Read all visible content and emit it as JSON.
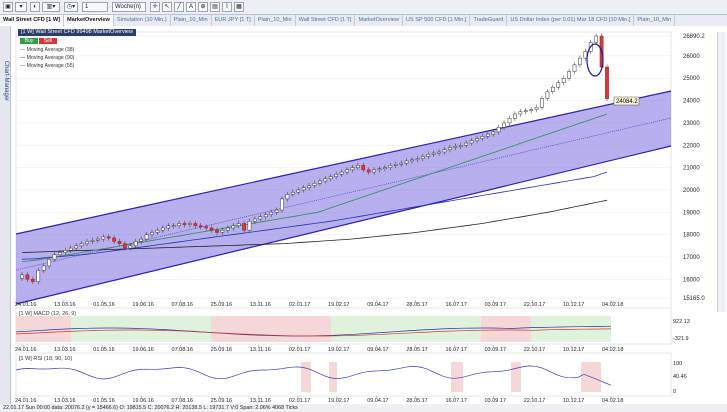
{
  "toolbar": {
    "interval_value": "1",
    "period_select": "Woche(n)"
  },
  "tabs": [
    {
      "label": "Wall Street CFD [1 W]"
    },
    {
      "label": "MarketOverview"
    },
    {
      "label": "Simulation (10 Min.)"
    },
    {
      "label": "Plain_10_Min"
    },
    {
      "label": "EUR JPY [1 T]"
    },
    {
      "label": "Plain_10_Min"
    },
    {
      "label": "Wall Street CFD [1 T]"
    },
    {
      "label": "MarketOverview"
    },
    {
      "label": "US SP 500 CFD [1 Min.]"
    },
    {
      "label": "TradeGuard"
    },
    {
      "label": "US Dollar Index (per 0.01) Mar 18 CFD [10 Min.]"
    },
    {
      "label": "Plain_10_Min"
    }
  ],
  "side_panel": {
    "label": "Chart-Manager"
  },
  "chart_header": {
    "title": "[1 W] Wall Street CFD    99498 MarketOverview",
    "buy_label": "Buy",
    "sell_label": "Sell"
  },
  "legend": [
    {
      "label": "Moving Average  (38)",
      "color": "#2e8b57"
    },
    {
      "label": "Moving Average  (90)",
      "color": "#222222"
    },
    {
      "label": "Moving Average  (55)",
      "color": "#2233aa"
    }
  ],
  "chart_data": [
    {
      "type": "candlestick",
      "x_ticks": [
        "24.01.16",
        "13.03.16",
        "01.05.16",
        "19.06.16",
        "07.08.16",
        "25.09.16",
        "13.11.16",
        "02.01.17",
        "19.02.17",
        "09.04.17",
        "28.05.17",
        "16.07.17",
        "03.09.17",
        "22.10.17",
        "10.12.17",
        "04.02.18"
      ],
      "y_ticks": [
        26890.2,
        26000,
        25000,
        24000,
        23000,
        22000,
        21000,
        20000,
        19000,
        18000,
        17000,
        16000,
        15165.0
      ],
      "ylim": [
        15165.0,
        26890.2
      ],
      "current_price_label": "24084.2",
      "weekly_close": [
        16200,
        16000,
        15900,
        16400,
        16600,
        16900,
        17100,
        17200,
        17300,
        17400,
        17500,
        17600,
        17700,
        17750,
        17800,
        17900,
        17850,
        17700,
        17600,
        17400,
        17500,
        17700,
        17800,
        18000,
        18100,
        18200,
        18300,
        18400,
        18400,
        18500,
        18450,
        18500,
        18400,
        18350,
        18300,
        18200,
        18100,
        18200,
        18300,
        18400,
        18500,
        18200,
        18600,
        18700,
        18800,
        18900,
        19000,
        19100,
        19600,
        19800,
        19900,
        20000,
        20100,
        20200,
        20300,
        20400,
        20500,
        20600,
        20700,
        20800,
        20900,
        21000,
        21100,
        20900,
        20800,
        20900,
        20950,
        21000,
        21100,
        21150,
        21200,
        21300,
        21350,
        21400,
        21500,
        21600,
        21650,
        21700,
        21800,
        21900,
        21950,
        22000,
        22100,
        22200,
        22300,
        22400,
        22500,
        22600,
        22800,
        23000,
        23200,
        23400,
        23500,
        23550,
        23600,
        23700,
        24100,
        24400,
        24600,
        24800,
        25000,
        25300,
        25600,
        25900,
        26200,
        26600,
        26890,
        25500,
        24084
      ],
      "ma38": [
        16800,
        16820,
        16850,
        16900,
        16950,
        17000,
        17050,
        17100,
        17150,
        17200,
        17250,
        17300,
        17350,
        17400,
        17450,
        17500,
        17550,
        17600,
        17650,
        17700,
        17750,
        17800,
        17850,
        17900,
        17950,
        18000,
        18050,
        18100,
        18150,
        18200,
        18250,
        18300,
        18350,
        18400,
        18450,
        18500,
        18550,
        18600,
        18650,
        18700,
        18750,
        18800,
        18850,
        18900,
        18950,
        19000,
        19100,
        19200,
        19300,
        19400,
        19500,
        19600,
        19700,
        19800,
        19900,
        20000,
        20100,
        20200,
        20300,
        20400,
        20500,
        20600,
        20700,
        20800,
        20900,
        21000,
        21100,
        21200,
        21300,
        21400,
        21500,
        21600,
        21700,
        21800,
        21900,
        22000,
        22100,
        22200,
        22300,
        22400,
        22500,
        22600,
        22700,
        22800,
        22900,
        23000,
        23100,
        23200,
        23300,
        23400
      ],
      "ma55": [
        16900,
        16910,
        16920,
        16950,
        16980,
        17000,
        17020,
        17050,
        17080,
        17100,
        17130,
        17160,
        17200,
        17240,
        17280,
        17320,
        17360,
        17400,
        17440,
        17480,
        17520,
        17560,
        17600,
        17640,
        17680,
        17720,
        17760,
        17800,
        17840,
        17880,
        17920,
        17960,
        18000,
        18040,
        18080,
        18120,
        18160,
        18200,
        18240,
        18280,
        18320,
        18360,
        18400,
        18440,
        18480,
        18520,
        18560,
        18600,
        18650,
        18700,
        18750,
        18800,
        18850,
        18900,
        18950,
        19000,
        19050,
        19100,
        19150,
        19200,
        19250,
        19300,
        19350,
        19400,
        19450,
        19500,
        19550,
        19600,
        19650,
        19700,
        19750,
        19800,
        19850,
        19900,
        19950,
        20000,
        20050,
        20100,
        20150,
        20200,
        20250,
        20300,
        20350,
        20400,
        20450,
        20500,
        20550,
        20600,
        20700,
        20800
      ],
      "ma90": [
        17200,
        17210,
        17220,
        17230,
        17240,
        17250,
        17260,
        17270,
        17280,
        17290,
        17300,
        17310,
        17320,
        17330,
        17340,
        17350,
        17360,
        17370,
        17380,
        17390,
        17400,
        17410,
        17420,
        17430,
        17440,
        17450,
        17460,
        17470,
        17480,
        17490,
        17500,
        17510,
        17520,
        17530,
        17540,
        17550,
        17560,
        17570,
        17580,
        17590,
        17600,
        17620,
        17640,
        17660,
        17680,
        17700,
        17720,
        17740,
        17760,
        17780,
        17800,
        17830,
        17860,
        17890,
        17920,
        17950,
        17980,
        18010,
        18040,
        18070,
        18100,
        18140,
        18180,
        18220,
        18260,
        18300,
        18340,
        18380,
        18420,
        18460,
        18500,
        18550,
        18600,
        18650,
        18700,
        18750,
        18800,
        18850,
        18900,
        18950,
        19000,
        19060,
        19120,
        19180,
        19240,
        19300,
        19360,
        19420,
        19480,
        19540
      ]
    },
    {
      "type": "line",
      "title": "[1 W] MACD  (12, 26, 9)",
      "value_labels": [
        "922.13",
        "-321.9"
      ]
    },
    {
      "type": "line",
      "title": "[1 W] RSI  (18, 90, 10)",
      "value_labels": [
        "100",
        "40.46",
        "0"
      ]
    }
  ],
  "status_bar": "22.01.17 Sun  00:00 data: 20076.2 (y = 15466.6)    O: 19815.5  C: 20076.2  H: 20138.5  L: 19731.7  V:0  Span: 2.06%  4068 Ticks"
}
